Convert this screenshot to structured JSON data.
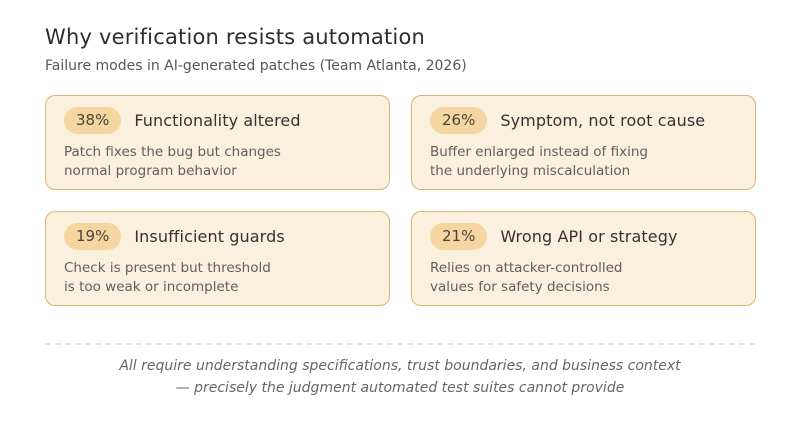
{
  "header": {
    "title": "Why verification resists automation",
    "subtitle": "Failure modes in AI-generated patches (Team Atlanta, 2026)"
  },
  "cards": [
    {
      "percent": "38%",
      "title": "Functionality altered",
      "description": "Patch fixes the bug but changes\nnormal program behavior"
    },
    {
      "percent": "26%",
      "title": "Symptom, not root cause",
      "description": "Buffer enlarged instead of fixing\nthe underlying miscalculation"
    },
    {
      "percent": "19%",
      "title": "Insufficient guards",
      "description": "Check is present but threshold\nis too weak or incomplete"
    },
    {
      "percent": "21%",
      "title": "Wrong API or strategy",
      "description": "Relies on attacker-controlled\nvalues for safety decisions"
    }
  ],
  "footer": {
    "line1": "All require understanding specifications, trust boundaries, and business context",
    "line2": "— precisely the judgment automated test suites cannot provide"
  },
  "colors": {
    "card_background": "#faf0de",
    "card_border": "#deb274",
    "badge_background": "#f6d6a0",
    "badge_text": "#4a4339",
    "title_text": "#2e2e2e",
    "body_text": "#5f5f5f",
    "divider": "#e4e4e4"
  }
}
